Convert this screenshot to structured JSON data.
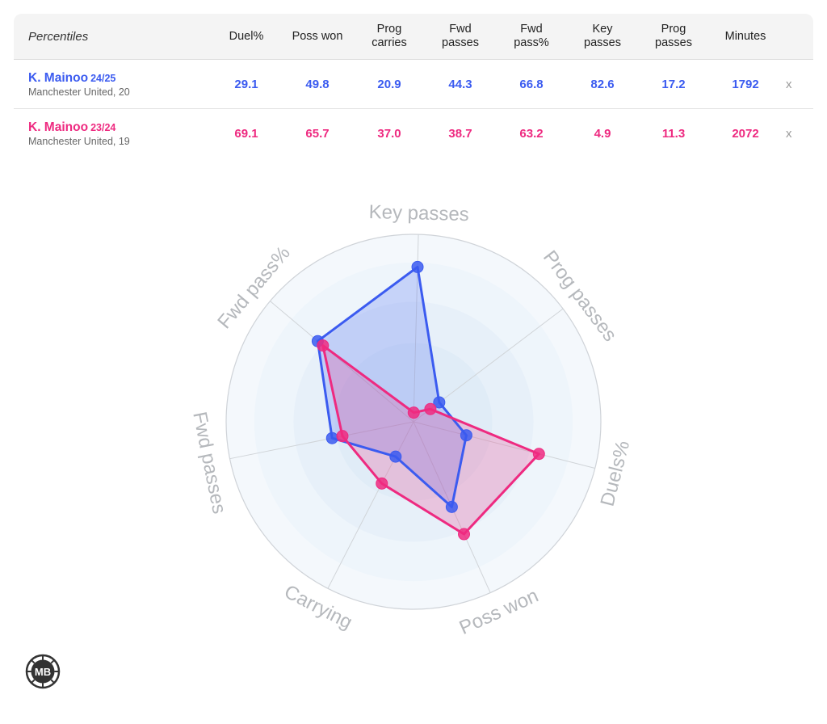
{
  "table": {
    "corner_label": "Percentiles",
    "headers": [
      "Duel%",
      "Poss won",
      "Prog\ncarries",
      "Fwd\npasses",
      "Fwd\npass%",
      "Key\npasses",
      "Prog\npasses",
      "Minutes"
    ],
    "rows": [
      {
        "name": "K. Mainoo",
        "season": "24/25",
        "team": "Manchester United, 20",
        "values": [
          "29.1",
          "49.8",
          "20.9",
          "44.3",
          "66.8",
          "82.6",
          "17.2",
          "1792"
        ],
        "color": "#3b5bf0",
        "remove_label": "x"
      },
      {
        "name": "K. Mainoo",
        "season": "23/24",
        "team": "Manchester United, 19",
        "values": [
          "69.1",
          "65.7",
          "37.0",
          "38.7",
          "63.2",
          "4.9",
          "11.3",
          "2072"
        ],
        "color": "#ee2a80",
        "remove_label": "x"
      }
    ]
  },
  "logo_text": "MB",
  "chart_data": {
    "type": "radar",
    "axes": [
      "Key passes",
      "Prog passes",
      "Duels%",
      "Poss won",
      "Carrying",
      "Fwd passes",
      "Fwd pass%"
    ],
    "range": [
      0,
      100
    ],
    "series": [
      {
        "name": "K. Mainoo 24/25",
        "values": [
          82.6,
          17.2,
          29.1,
          49.8,
          20.9,
          44.3,
          66.8
        ],
        "color": "#3b5bf0"
      },
      {
        "name": "K. Mainoo 23/24",
        "values": [
          4.9,
          11.3,
          69.1,
          65.7,
          37.0,
          38.7,
          63.2
        ],
        "color": "#ee2a80"
      }
    ]
  }
}
